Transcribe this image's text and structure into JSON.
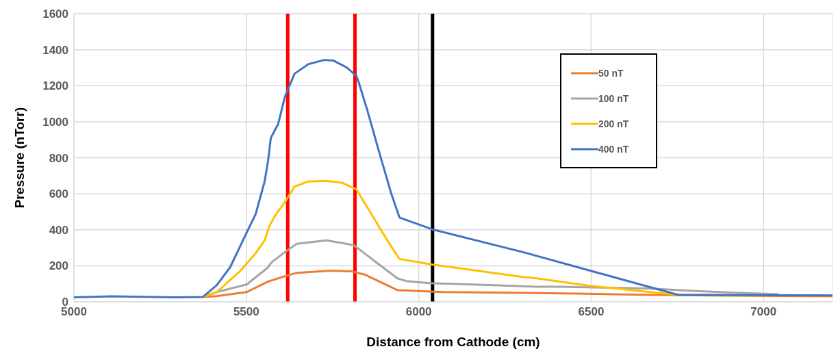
{
  "chart_data": {
    "type": "line",
    "xlabel": "Distance from Cathode (cm)",
    "ylabel": "Pressure (nTorr)",
    "xlim": [
      5000,
      7200
    ],
    "xticks": [
      5000,
      5500,
      6000,
      6500,
      7000
    ],
    "ylim": [
      0,
      1600
    ],
    "yticks": [
      0,
      200,
      400,
      600,
      800,
      1000,
      1200,
      1400,
      1600
    ],
    "grid": true,
    "legend": "top right",
    "marker": "none",
    "line_style": "solid",
    "series": [
      {
        "name": "50 nT",
        "color": "#ed7d31",
        "x": [
          5374,
          5414,
          5501,
          5561,
          5612,
          5646,
          5746,
          5805,
          5845,
          5938,
          6070,
          6455,
          6674,
          6845,
          7200
        ],
        "values": [
          27,
          31,
          54,
          111,
          142,
          161,
          173,
          169,
          150,
          65,
          54,
          46,
          38,
          35,
          30
        ]
      },
      {
        "name": "100 nT",
        "color": "#a5a5a5",
        "x": [
          5374,
          5414,
          5501,
          5561,
          5573,
          5612,
          5646,
          5732,
          5811,
          5851,
          5885,
          5938,
          5964,
          6030,
          6157,
          6342,
          6408,
          6674,
          6793,
          6918,
          7044
        ],
        "values": [
          27,
          54,
          96,
          188,
          219,
          276,
          322,
          341,
          315,
          257,
          207,
          130,
          115,
          104,
          96,
          84,
          84,
          73,
          61,
          50,
          42
        ]
      },
      {
        "name": "200 nT",
        "color": "#ffc000",
        "x": [
          5374,
          5414,
          5481,
          5527,
          5553,
          5567,
          5586,
          5612,
          5640,
          5680,
          5732,
          5779,
          5819,
          5859,
          5911,
          5944,
          6038,
          6302,
          6342,
          6497,
          6753,
          7200
        ],
        "values": [
          27,
          54,
          169,
          269,
          341,
          422,
          487,
          553,
          641,
          668,
          672,
          660,
          625,
          499,
          334,
          238,
          207,
          138,
          130,
          88,
          38,
          35
        ]
      },
      {
        "name": "400 nT",
        "color": "#4472c4",
        "x": [
          5000,
          5110,
          5290,
          5374,
          5414,
          5453,
          5501,
          5527,
          5553,
          5563,
          5571,
          5592,
          5612,
          5640,
          5680,
          5726,
          5752,
          5791,
          5819,
          5825,
          5851,
          5885,
          5920,
          5944,
          6038,
          6302,
          6497,
          6753,
          7200
        ],
        "values": [
          25,
          30,
          25,
          27,
          92,
          192,
          384,
          487,
          668,
          783,
          910,
          986,
          1140,
          1267,
          1320,
          1343,
          1340,
          1301,
          1255,
          1224,
          1063,
          833,
          602,
          468,
          403,
          276,
          173,
          38,
          35
        ]
      }
    ],
    "ref_lines": [
      {
        "axis": "x",
        "value": 5620,
        "color": "#ff0000"
      },
      {
        "axis": "x",
        "value": 5815,
        "color": "#ff0000"
      },
      {
        "axis": "x",
        "value": 6040,
        "color": "#000000"
      }
    ]
  }
}
